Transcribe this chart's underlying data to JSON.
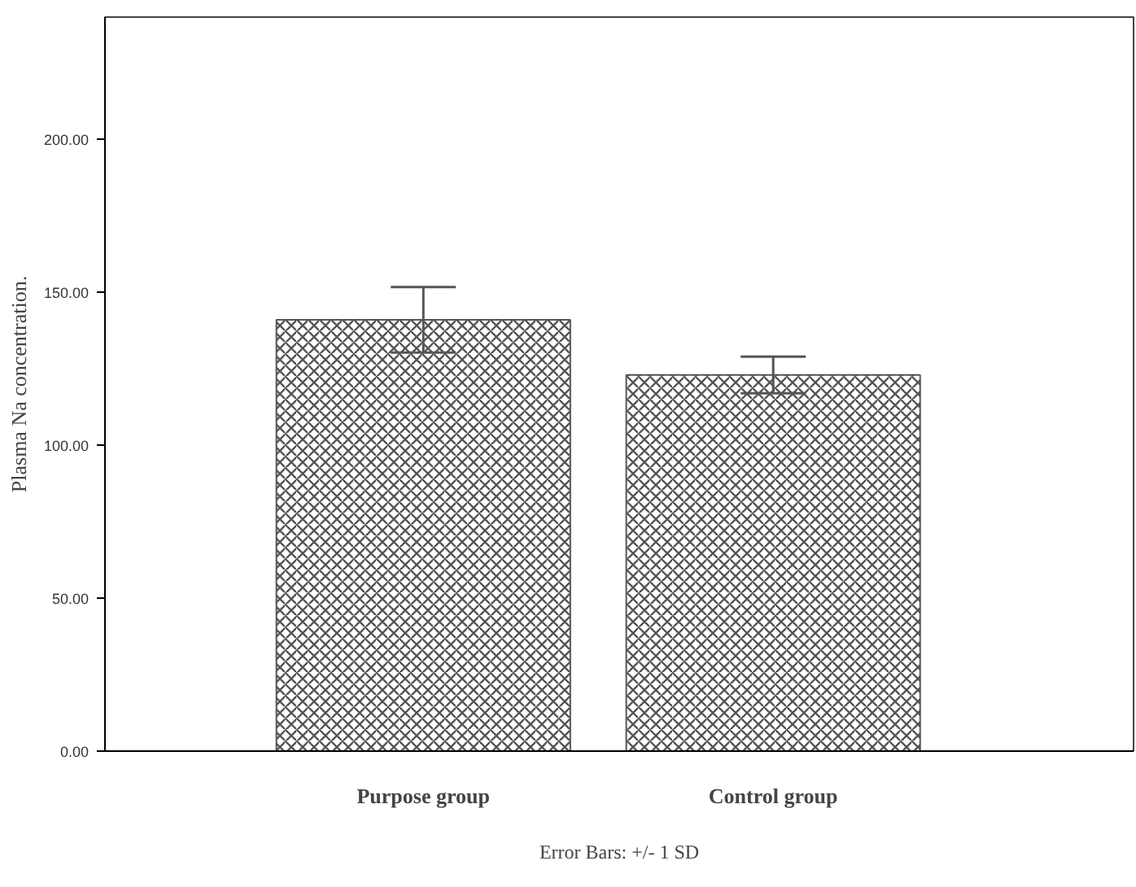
{
  "chart_data": {
    "type": "bar",
    "ylabel": "Plasma Na concentration.",
    "categories": [
      "Purpose group",
      "Control group"
    ],
    "values": [
      141,
      123
    ],
    "errors": [
      10.7,
      6
    ],
    "color": "#555555",
    "ylim": [
      0,
      240
    ],
    "yticks": [
      {
        "value": 0,
        "label": "0.00"
      },
      {
        "value": 50,
        "label": "50.00"
      },
      {
        "value": 100,
        "label": "100.00"
      },
      {
        "value": 150,
        "label": "150.00"
      },
      {
        "value": 200,
        "label": "200.00"
      }
    ],
    "annotations": [
      "Error Bars: +/- 1 SD"
    ]
  }
}
